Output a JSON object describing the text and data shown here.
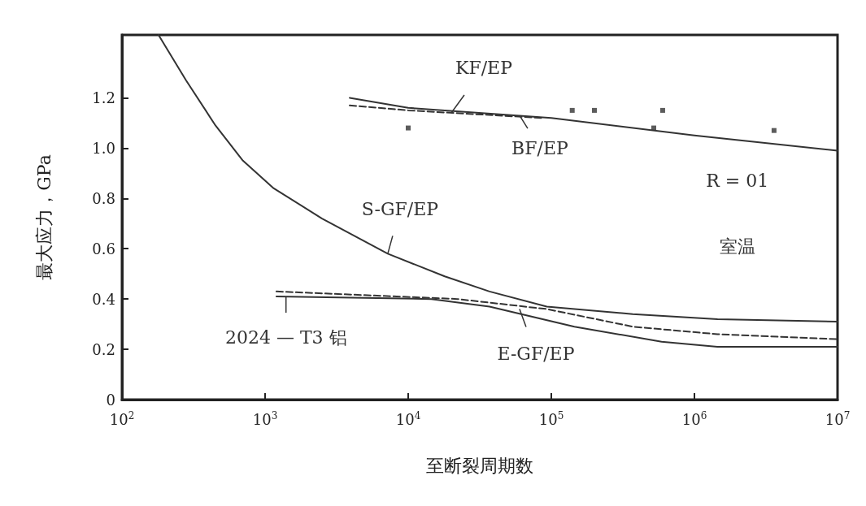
{
  "chart_data": {
    "type": "line",
    "xlabel": "至断裂周期数",
    "ylabel": "最大应力，GPa",
    "log": "x",
    "grid": false,
    "marker": "none",
    "xlim": [
      100,
      10000000
    ],
    "xticks": [
      {
        "value": 100,
        "label": "10$^{2}$"
      },
      {
        "value": 1000,
        "label": "10$^{3}$"
      },
      {
        "value": 10000,
        "label": "10$^{4}$"
      },
      {
        "value": 100000,
        "label": "10$^{5}$"
      },
      {
        "value": 1000000,
        "label": "10$^{6}$"
      },
      {
        "value": 10000000,
        "label": "10$^{7}$"
      }
    ],
    "ylim": [
      0,
      1.45
    ],
    "yticks": [
      0,
      0.2,
      0.4,
      0.6,
      0.8,
      {
        "value": 1,
        "label": "1.0"
      },
      1.2
    ],
    "series": [
      {
        "color": "#333333",
        "line_style": "solid",
        "x": [
          3900,
          10000,
          100000,
          1000000,
          10000000
        ],
        "values": [
          1.2,
          1.16,
          1.12,
          1.05,
          0.99
        ]
      },
      {
        "color": "#333333",
        "line_style": "dashed",
        "x": [
          3900,
          10000,
          85000
        ],
        "values": [
          1.17,
          1.15,
          1.12
        ]
      },
      {
        "type": "scatter",
        "color": "#333333",
        "marker": "square",
        "x": [
          10000,
          140000,
          200000,
          520000,
          600000,
          3600000
        ],
        "values": [
          1.08,
          1.15,
          1.15,
          1.08,
          1.15,
          1.07
        ]
      },
      {
        "color": "#333333",
        "line_style": "solid",
        "x": [
          180,
          280,
          450,
          700,
          1150,
          2500,
          7200,
          18000,
          37000,
          93000,
          370000,
          1450000,
          10000000
        ],
        "values": [
          1.45,
          1.27,
          1.09,
          0.95,
          0.84,
          0.72,
          0.58,
          0.49,
          0.43,
          0.37,
          0.34,
          0.32,
          0.31
        ]
      },
      {
        "color": "#333333",
        "line_style": "dashed",
        "x": [
          1200,
          22000,
          93000,
          371000,
          1450000,
          10000000
        ],
        "values": [
          0.43,
          0.4,
          0.36,
          0.29,
          0.26,
          0.24
        ]
      },
      {
        "color": "#333333",
        "line_style": "solid",
        "x": [
          1200,
          14500,
          37000,
          145000,
          590000,
          1450000,
          10000000
        ],
        "values": [
          0.41,
          0.4,
          0.37,
          0.29,
          0.23,
          0.21,
          0.21
        ]
      }
    ],
    "annotations": [
      {
        "text": "KF/EP",
        "x": 20000,
        "y": 1.14
      },
      {
        "text": "BF/EP",
        "x": 60000,
        "y": 1.13
      },
      {
        "text": "S-GF/EP",
        "x": 7200,
        "y": 0.58
      },
      {
        "text": "E-GF/EP",
        "x": 60000,
        "y": 0.36
      },
      {
        "text": "2024 — T3 铝",
        "x": 1400,
        "y": 0.41
      },
      "R = 01",
      "室温"
    ]
  }
}
